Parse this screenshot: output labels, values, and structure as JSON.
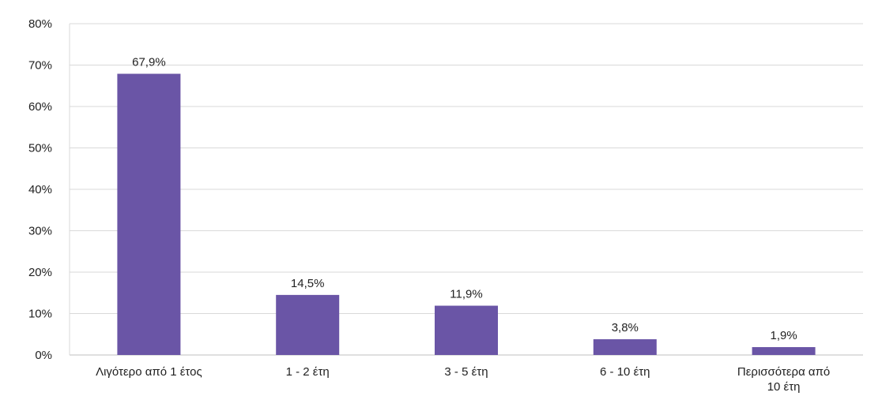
{
  "chart_data": {
    "type": "bar",
    "categories": [
      [
        "Λιγότερο από 1 έτος"
      ],
      [
        "1 - 2 έτη"
      ],
      [
        "3 - 5 έτη"
      ],
      [
        "6 - 10 έτη"
      ],
      [
        "Περισσότερα από",
        "10 έτη"
      ]
    ],
    "values": [
      67.9,
      14.5,
      11.9,
      3.8,
      1.9
    ],
    "data_labels": [
      "67,9%",
      "14,5%",
      "11,9%",
      "3,8%",
      "1,9%"
    ],
    "y_ticks": [
      "0%",
      "10%",
      "20%",
      "30%",
      "40%",
      "50%",
      "60%",
      "70%",
      "80%"
    ],
    "ylim": [
      0,
      80
    ],
    "grid": true,
    "bar_color": "#6a55a6"
  }
}
